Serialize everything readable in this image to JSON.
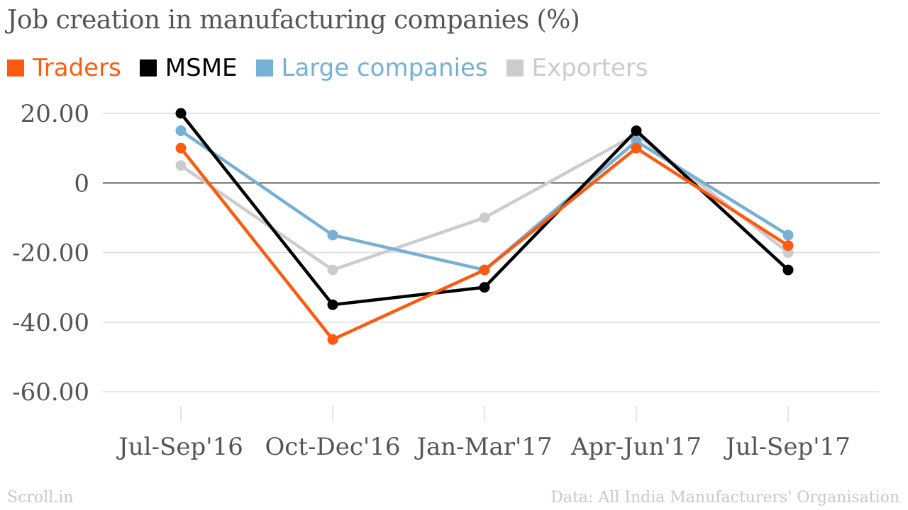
{
  "chart_data": {
    "type": "line",
    "title": "Job creation in manufacturing companies (%)",
    "categories": [
      "Jul-Sep'16",
      "Oct-Dec'16",
      "Jan-Mar'17",
      "Apr-Jun'17",
      "Jul-Sep'17"
    ],
    "series": [
      {
        "name": "Traders",
        "color": "#fc5b0f",
        "values": [
          10,
          -45,
          -25,
          10,
          -18
        ]
      },
      {
        "name": "MSME",
        "color": "#000000",
        "values": [
          20,
          -35,
          -30,
          15,
          -25
        ]
      },
      {
        "name": "Large companies",
        "color": "#76b0d5",
        "values": [
          15,
          -15,
          -25,
          12,
          -15
        ]
      },
      {
        "name": "Exporters",
        "color": "#cccccc",
        "values": [
          5,
          -25,
          -10,
          14,
          -20
        ]
      }
    ],
    "y_ticks": [
      {
        "value": 20,
        "label": "20.00"
      },
      {
        "value": 0,
        "label": "0"
      },
      {
        "value": -20,
        "label": "-20.00"
      },
      {
        "value": -40,
        "label": "-40.00"
      },
      {
        "value": -60,
        "label": "-60.00"
      }
    ],
    "ylim": [
      -60,
      20
    ],
    "grid": true,
    "legend_position": "top-left",
    "xlabel": "",
    "ylabel": ""
  },
  "footer": {
    "source_brand": "Scroll.in",
    "data_source": "Data: All India Manufacturers' Organisation"
  }
}
